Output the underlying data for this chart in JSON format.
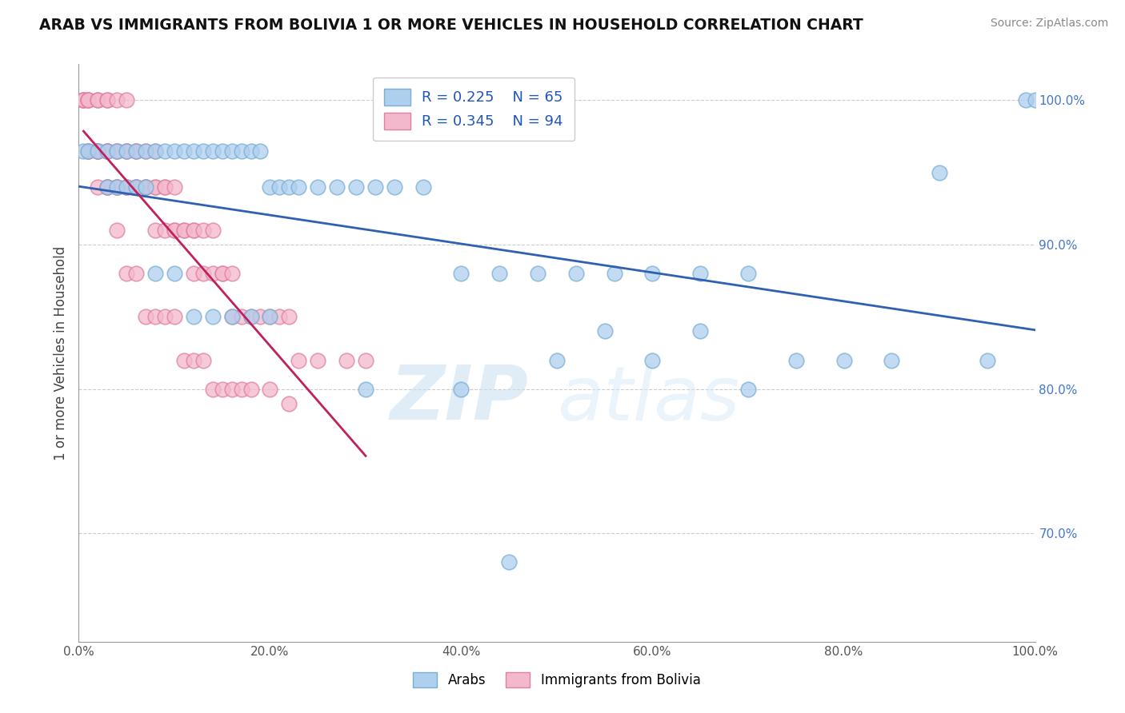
{
  "title": "ARAB VS IMMIGRANTS FROM BOLIVIA 1 OR MORE VEHICLES IN HOUSEHOLD CORRELATION CHART",
  "source": "Source: ZipAtlas.com",
  "ylabel": "1 or more Vehicles in Household",
  "xlim": [
    0.0,
    1.0
  ],
  "ylim": [
    0.625,
    1.025
  ],
  "yticks": [
    0.7,
    0.8,
    0.9,
    1.0
  ],
  "ytick_labels": [
    "70.0%",
    "80.0%",
    "90.0%",
    "100.0%"
  ],
  "xticks": [
    0.0,
    0.2,
    0.4,
    0.6,
    0.8,
    1.0
  ],
  "xtick_labels": [
    "0.0%",
    "20.0%",
    "40.0%",
    "60.0%",
    "80.0%",
    "100.0%"
  ],
  "arab_color": "#aecfee",
  "arab_edge_color": "#7aafd4",
  "bolivia_color": "#f4b8cc",
  "bolivia_edge_color": "#e080a0",
  "trend_arab_color": "#3060b0",
  "trend_bolivia_color": "#c02060",
  "arab_R": 0.225,
  "arab_N": 65,
  "bolivia_R": 0.345,
  "bolivia_N": 94,
  "legend_arab_label": "Arabs",
  "legend_bolivia_label": "Immigrants from Bolivia",
  "watermark_zip": "ZIP",
  "watermark_atlas": "atlas",
  "background_color": "#ffffff",
  "grid_color": "#cccccc",
  "arab_x": [
    0.005,
    0.01,
    0.02,
    0.03,
    0.04,
    0.05,
    0.06,
    0.07,
    0.08,
    0.09,
    0.1,
    0.11,
    0.12,
    0.13,
    0.14,
    0.15,
    0.16,
    0.17,
    0.18,
    0.19,
    0.2,
    0.21,
    0.22,
    0.23,
    0.25,
    0.27,
    0.29,
    0.31,
    0.33,
    0.36,
    0.4,
    0.44,
    0.48,
    0.52,
    0.56,
    0.6,
    0.65,
    0.7,
    0.75,
    0.8,
    0.85,
    0.9,
    0.95,
    0.99,
    0.03,
    0.04,
    0.05,
    0.06,
    0.07,
    0.08,
    0.1,
    0.12,
    0.14,
    0.16,
    0.18,
    0.2,
    0.3,
    0.4,
    0.5,
    0.6,
    0.7,
    0.55,
    0.65,
    1.0,
    0.45
  ],
  "arab_y": [
    0.965,
    0.965,
    0.965,
    0.965,
    0.965,
    0.965,
    0.965,
    0.965,
    0.965,
    0.965,
    0.965,
    0.965,
    0.965,
    0.965,
    0.965,
    0.965,
    0.965,
    0.965,
    0.965,
    0.965,
    0.94,
    0.94,
    0.94,
    0.94,
    0.94,
    0.94,
    0.94,
    0.94,
    0.94,
    0.94,
    0.88,
    0.88,
    0.88,
    0.88,
    0.88,
    0.88,
    0.88,
    0.88,
    0.82,
    0.82,
    0.82,
    0.95,
    0.82,
    1.0,
    0.94,
    0.94,
    0.94,
    0.94,
    0.94,
    0.88,
    0.88,
    0.85,
    0.85,
    0.85,
    0.85,
    0.85,
    0.8,
    0.8,
    0.82,
    0.82,
    0.8,
    0.84,
    0.84,
    1.0,
    0.68
  ],
  "bolivia_x": [
    0.005,
    0.005,
    0.005,
    0.01,
    0.01,
    0.01,
    0.01,
    0.01,
    0.02,
    0.02,
    0.02,
    0.02,
    0.02,
    0.02,
    0.03,
    0.03,
    0.03,
    0.03,
    0.03,
    0.03,
    0.03,
    0.04,
    0.04,
    0.04,
    0.04,
    0.04,
    0.04,
    0.05,
    0.05,
    0.05,
    0.05,
    0.05,
    0.06,
    0.06,
    0.06,
    0.06,
    0.06,
    0.07,
    0.07,
    0.07,
    0.07,
    0.08,
    0.08,
    0.08,
    0.08,
    0.09,
    0.09,
    0.09,
    0.1,
    0.1,
    0.1,
    0.11,
    0.11,
    0.12,
    0.12,
    0.12,
    0.13,
    0.13,
    0.14,
    0.14,
    0.15,
    0.15,
    0.16,
    0.16,
    0.17,
    0.18,
    0.19,
    0.2,
    0.21,
    0.22,
    0.23,
    0.25,
    0.28,
    0.3,
    0.01,
    0.02,
    0.03,
    0.04,
    0.05,
    0.06,
    0.07,
    0.08,
    0.09,
    0.1,
    0.11,
    0.12,
    0.13,
    0.14,
    0.15,
    0.16,
    0.17,
    0.18,
    0.2,
    0.22
  ],
  "bolivia_y": [
    1.0,
    1.0,
    1.0,
    1.0,
    1.0,
    1.0,
    0.965,
    0.965,
    1.0,
    1.0,
    0.965,
    0.965,
    0.965,
    0.965,
    1.0,
    1.0,
    0.965,
    0.965,
    0.965,
    0.94,
    0.94,
    1.0,
    0.965,
    0.965,
    0.94,
    0.94,
    0.94,
    1.0,
    0.965,
    0.965,
    0.94,
    0.94,
    0.965,
    0.965,
    0.94,
    0.94,
    0.94,
    0.965,
    0.94,
    0.94,
    0.94,
    0.965,
    0.94,
    0.94,
    0.91,
    0.94,
    0.94,
    0.91,
    0.94,
    0.91,
    0.91,
    0.91,
    0.91,
    0.91,
    0.91,
    0.88,
    0.91,
    0.88,
    0.91,
    0.88,
    0.88,
    0.88,
    0.88,
    0.85,
    0.85,
    0.85,
    0.85,
    0.85,
    0.85,
    0.85,
    0.82,
    0.82,
    0.82,
    0.82,
    0.965,
    0.94,
    0.94,
    0.91,
    0.88,
    0.88,
    0.85,
    0.85,
    0.85,
    0.85,
    0.82,
    0.82,
    0.82,
    0.8,
    0.8,
    0.8,
    0.8,
    0.8,
    0.8,
    0.79
  ]
}
